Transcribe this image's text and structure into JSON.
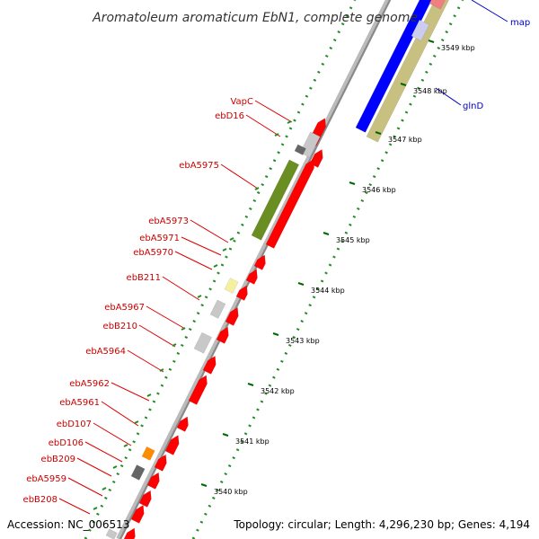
{
  "title": "Aromatoleum aromaticum EbN1, complete genome",
  "footer": {
    "accession": "Accession: NC_006513",
    "summary": "Topology: circular; Length: 4,296,230 bp; Genes: 4,194"
  },
  "colors": {
    "cds_forward": "#ff0000",
    "backbone": "#999999",
    "feature_blue": "#0000ff",
    "feature_olive": "#c8c080",
    "feature_green": "#6b8e23",
    "feature_gray": "#c8c8c8",
    "feature_dark_gray": "#666666",
    "feature_yellow": "#f5f0a0",
    "feature_orange": "#ff8c00",
    "feature_pink": "#f08080",
    "dots_green": "#228b22"
  },
  "kbp_ticks": [
    {
      "label": "3549 kbp"
    },
    {
      "label": "3548 kbp"
    },
    {
      "label": "3547 kbp"
    },
    {
      "label": "3546 kbp"
    },
    {
      "label": "3545 kbp"
    },
    {
      "label": "3544 kbp"
    },
    {
      "label": "3543 kbp"
    },
    {
      "label": "3542 kbp"
    },
    {
      "label": "3541 kbp"
    },
    {
      "label": "3540 kbp"
    }
  ],
  "gene_labels": [
    {
      "label": "VapC"
    },
    {
      "label": "ebD16"
    },
    {
      "label": "ebA5975"
    },
    {
      "label": "ebA5973"
    },
    {
      "label": "ebA5971"
    },
    {
      "label": "ebA5970"
    },
    {
      "label": "ebB211"
    },
    {
      "label": "ebA5967"
    },
    {
      "label": "ebB210"
    },
    {
      "label": "ebA5964"
    },
    {
      "label": "ebA5962"
    },
    {
      "label": "ebA5961"
    },
    {
      "label": "ebD107"
    },
    {
      "label": "ebD106"
    },
    {
      "label": "ebB209"
    },
    {
      "label": "ebA5959"
    },
    {
      "label": "ebB208"
    }
  ],
  "blue_labels": [
    {
      "label": "map"
    },
    {
      "label": "glnD"
    }
  ]
}
